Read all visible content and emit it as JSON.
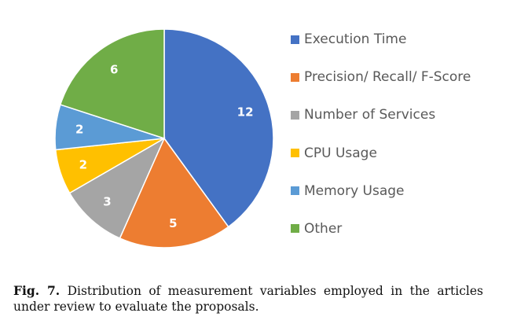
{
  "chart_data": {
    "type": "pie",
    "categories": [
      "Execution Time",
      "Precision/ Recall/ F-Score",
      "Number of Services",
      "CPU Usage",
      "Memory Usage",
      "Other"
    ],
    "values": [
      12,
      5,
      3,
      2,
      2,
      6
    ],
    "colors": [
      "#4472C4",
      "#ED7D31",
      "#A5A5A5",
      "#FFC000",
      "#5B9BD5",
      "#70AD47"
    ],
    "legend_position": "right",
    "start_angle": "12 o'clock, clockwise"
  },
  "caption": {
    "label": "Fig. 7.",
    "text": " Distribution of measurement variables employed in the articles under review to evaluate the proposals."
  }
}
